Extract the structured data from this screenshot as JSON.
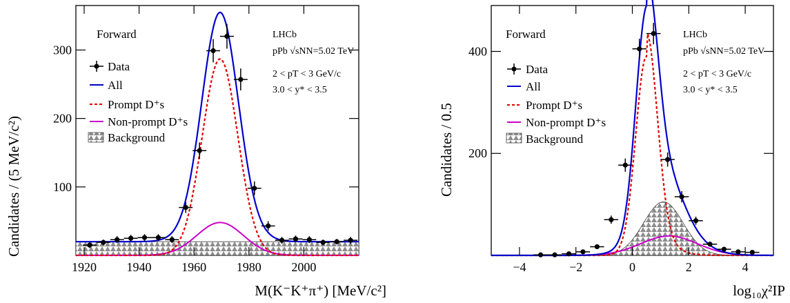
{
  "chart_data": [
    {
      "type": "line",
      "xlabel": "M(K⁻K⁺π⁺) [MeV/c²]",
      "ylabel": "Candidates / (5 MeV/c²)",
      "xlim": [
        1917,
        2020
      ],
      "ylim": [
        0,
        365
      ],
      "xticks": [
        1920,
        1940,
        1960,
        1980,
        2000
      ],
      "yticks": [
        100,
        200,
        300
      ],
      "region_label": "Forward",
      "annotations": [
        "LHCb",
        "pPb √sNN=5.02 TeV",
        "2 < pT < 3 GeV/c",
        "3.0 < y* < 3.5"
      ],
      "legend": [
        "Data",
        "All",
        "Prompt D⁺s",
        "Non-prompt D⁺s",
        "Background"
      ],
      "legend_position": "top-left",
      "colors": {
        "all": "#0000cc",
        "prompt": "#e00000",
        "nonprompt": "#cc00cc",
        "data": "#000000"
      },
      "series": [
        {
          "name": "Data",
          "x": [
            1922,
            1927,
            1932,
            1937,
            1942,
            1947,
            1952,
            1957,
            1962,
            1967,
            1972,
            1977,
            1982,
            1987,
            1992,
            1997,
            2002,
            2007,
            2012,
            2017
          ],
          "values": [
            15,
            19,
            23,
            25,
            26,
            26,
            23,
            70,
            153,
            299,
            320,
            257,
            98,
            43,
            22,
            24,
            23,
            19,
            20,
            22
          ],
          "errors": [
            4,
            4,
            5,
            5,
            5,
            5,
            5,
            8,
            12,
            17,
            18,
            16,
            10,
            7,
            5,
            5,
            5,
            4,
            4,
            5
          ]
        },
        {
          "name": "All",
          "model": {
            "bkg": 20,
            "prompt_peak": 287,
            "prompt_mean": 1969.5,
            "prompt_sigma": 6.5,
            "nonprompt_peak": 48,
            "nonprompt_mean": 1969.5,
            "nonprompt_sigma": 8.5
          }
        },
        {
          "name": "Prompt D⁺s"
        },
        {
          "name": "Non-prompt D⁺s"
        },
        {
          "name": "Background",
          "level": 20
        }
      ]
    },
    {
      "type": "line",
      "xlabel": "log₁₀χ²IP",
      "ylabel": "Candidates / 0.5",
      "xlim": [
        -5,
        5
      ],
      "ylim": [
        0,
        490
      ],
      "xticks": [
        -4,
        -2,
        0,
        2,
        4
      ],
      "yticks": [
        200,
        400
      ],
      "region_label": "Forward",
      "annotations": [
        "LHCb",
        "pPb √sNN=5.02 TeV",
        "2 < pT < 3 GeV/c",
        "3.0 < y* < 3.5"
      ],
      "legend": [
        "Data",
        "All",
        "Prompt D⁺s",
        "Non-prompt D⁺s",
        "Background"
      ],
      "legend_position": "top-left",
      "colors": {
        "all": "#0000cc",
        "prompt": "#e00000",
        "nonprompt": "#cc00cc",
        "data": "#000000"
      },
      "series": [
        {
          "name": "Data",
          "x": [
            -3.25,
            -2.75,
            -2.25,
            -1.75,
            -1.25,
            -0.75,
            -0.25,
            0.25,
            0.75,
            1.25,
            1.75,
            2.25,
            2.75,
            3.25,
            3.75,
            4.25
          ],
          "values": [
            1,
            1,
            3,
            7,
            17,
            70,
            177,
            405,
            435,
            188,
            115,
            68,
            22,
            12,
            7,
            6
          ],
          "errors": [
            1,
            1,
            2,
            3,
            4,
            8,
            13,
            20,
            21,
            14,
            11,
            8,
            5,
            4,
            3,
            3
          ]
        },
        {
          "name": "All",
          "model": {
            "prompt_peak": 390,
            "prompt_mean": 0.5,
            "prompt_sigma": 0.38,
            "nonprompt_peak": 38,
            "nonprompt_mean": 1.3,
            "nonprompt_sigma": 1.0,
            "bkg_peak": 105,
            "bkg_mean": 1.1,
            "bkg_sigma": 0.7
          }
        },
        {
          "name": "Prompt D⁺s"
        },
        {
          "name": "Non-prompt D⁺s"
        },
        {
          "name": "Background"
        }
      ]
    }
  ]
}
